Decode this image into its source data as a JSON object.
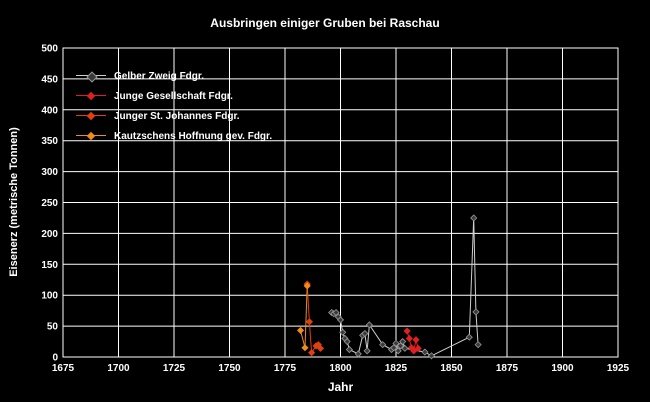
{
  "chart_data": {
    "type": "scatter",
    "title": "Ausbringen einiger Gruben bei Raschau",
    "xlabel": "Jahr",
    "ylabel": "Eisenerz (metrische Tonnen)",
    "xlim": [
      1675,
      1925
    ],
    "ylim": [
      0,
      500
    ],
    "x_ticks": [
      "1675",
      "1700",
      "1725",
      "1750",
      "1775",
      "1800",
      "1825",
      "1850",
      "1875",
      "1900",
      "1925"
    ],
    "y_ticks": [
      "0",
      "50",
      "100",
      "150",
      "200",
      "250",
      "300",
      "350",
      "400",
      "450",
      "500"
    ],
    "grid": true,
    "legend_position": "top-left",
    "series": [
      {
        "name": "Gelber Zweig Fdgr.",
        "color": "#3a3a3a",
        "points": [
          [
            1796,
            72
          ],
          [
            1797,
            70
          ],
          [
            1798,
            72
          ],
          [
            1799,
            65
          ],
          [
            1800,
            60
          ],
          [
            1801,
            40
          ],
          [
            1802,
            30
          ],
          [
            1803,
            25
          ],
          [
            1804,
            12
          ],
          [
            1808,
            5
          ],
          [
            1810,
            35
          ],
          [
            1811,
            38
          ],
          [
            1812,
            10
          ],
          [
            1813,
            52
          ],
          [
            1819,
            20
          ],
          [
            1823,
            12
          ],
          [
            1824,
            15
          ],
          [
            1825,
            22
          ],
          [
            1826,
            10
          ],
          [
            1827,
            18
          ],
          [
            1828,
            25
          ],
          [
            1829,
            14
          ],
          [
            1838,
            8
          ],
          [
            1841,
            2
          ],
          [
            1858,
            32
          ],
          [
            1860,
            225
          ],
          [
            1861,
            73
          ],
          [
            1862,
            20
          ]
        ]
      },
      {
        "name": "Junge Gesellschaft Fdgr.",
        "color": "#e02020",
        "points": [
          [
            1830,
            42
          ],
          [
            1831,
            30
          ],
          [
            1832,
            15
          ],
          [
            1833,
            10
          ],
          [
            1834,
            28
          ],
          [
            1835,
            14
          ]
        ]
      },
      {
        "name": "Junger St. Johannes Fdgr.",
        "color": "#e04010",
        "points": [
          [
            1785,
            118
          ],
          [
            1786,
            57
          ],
          [
            1787,
            7
          ],
          [
            1789,
            18
          ],
          [
            1790,
            20
          ],
          [
            1791,
            14
          ]
        ]
      },
      {
        "name": "Kautzschens Hoffnung gev. Fdgr.",
        "color": "#f08c1a",
        "points": [
          [
            1782,
            43
          ],
          [
            1784,
            15
          ],
          [
            1785,
            115
          ]
        ]
      }
    ]
  }
}
